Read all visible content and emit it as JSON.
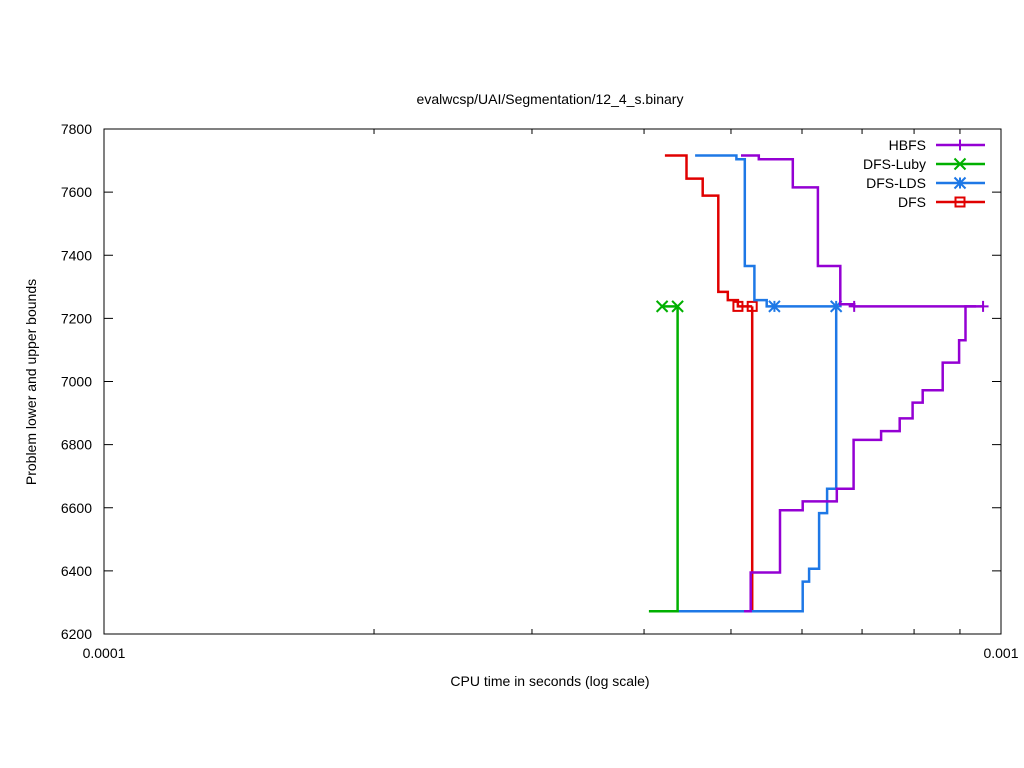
{
  "chart_data": {
    "type": "line",
    "title": "evalwcsp/UAI/Segmentation/12_4_s.binary",
    "xlabel": "CPU time in seconds (log scale)",
    "ylabel": "Problem lower and upper bounds",
    "xscale": "log",
    "xlim": [
      0.0001,
      0.001
    ],
    "ylim": [
      6200,
      7800
    ],
    "x_ticks": [
      {
        "value": 0.0001,
        "label": "0.0001"
      },
      {
        "value": 0.001,
        "label": "0.001"
      }
    ],
    "x_minor_ticks": [
      0.0002,
      0.0003,
      0.0004,
      0.0005,
      0.0006,
      0.0007,
      0.0008,
      0.0009
    ],
    "y_ticks": [
      6200,
      6400,
      6600,
      6800,
      7000,
      7200,
      7400,
      7600,
      7800
    ],
    "grid": false,
    "legend_position": "top-right",
    "series": [
      {
        "name": "HBFS",
        "color": "#9400d3",
        "marker": "plus",
        "upper": {
          "x": [
            0.000513,
            0.000537,
            0.000586,
            0.000625,
            0.000662,
            0.000686,
            0.000715
          ],
          "y": [
            7716,
            7704,
            7615,
            7366,
            7245,
            7238,
            7238
          ],
          "end_x": 0.000955
        },
        "lower": {
          "x": [
            0.000526,
            0.000567,
            0.000601,
            0.000656,
            0.000685,
            0.000735,
            0.000771,
            0.000797,
            0.000818,
            0.000861,
            0.000898,
            0.000913,
            0.000938
          ],
          "y": [
            6395,
            6592,
            6620,
            6660,
            6815,
            6843,
            6883,
            6933,
            6972,
            7060,
            7131,
            7238,
            7238
          ],
          "start_x": 0.000517,
          "start_y": 6272
        },
        "markers": [
          {
            "x": 0.000686,
            "y": 7238
          },
          {
            "x": 0.000955,
            "y": 7238
          }
        ]
      },
      {
        "name": "DFS-Luby",
        "color": "#00b000",
        "marker": "cross",
        "upper": {
          "x": [
            0.000419,
            0.000436
          ],
          "y": [
            7238,
            7238
          ]
        },
        "lower": {
          "x": [
            0.000405,
            0.000436,
            0.000436
          ],
          "y": [
            6272,
            6272,
            7238
          ]
        },
        "markers": [
          {
            "x": 0.000419,
            "y": 7238
          },
          {
            "x": 0.000436,
            "y": 7238
          }
        ]
      },
      {
        "name": "DFS-LDS",
        "color": "#1e78e6",
        "marker": "star",
        "upper": {
          "x": [
            0.000456,
            0.000507,
            0.000518,
            0.000531,
            0.000548,
            0.000559,
            0.000655
          ],
          "y": [
            7716,
            7704,
            7366,
            7258,
            7238,
            7238,
            7238
          ]
        },
        "lower": {
          "x": [
            0.000436,
            0.000601,
            0.000611,
            0.000627,
            0.00064,
            0.000655,
            0.000655
          ],
          "y": [
            6272,
            6366,
            6407,
            6583,
            6660,
            6660,
            7238
          ]
        },
        "markers": [
          {
            "x": 0.000559,
            "y": 7238
          },
          {
            "x": 0.000655,
            "y": 7238
          }
        ]
      },
      {
        "name": "DFS",
        "color": "#e00000",
        "marker": "square",
        "upper": {
          "x": [
            0.000422,
            0.000446,
            0.000465,
            0.000484,
            0.000496,
            0.000509,
            0.000528
          ],
          "y": [
            7716,
            7643,
            7589,
            7284,
            7258,
            7238,
            7238
          ]
        },
        "lower": {
          "x": [
            0.000425,
            0.000528,
            0.000528
          ],
          "y": [
            6272,
            6272,
            7238
          ]
        },
        "markers": [
          {
            "x": 0.000509,
            "y": 7238
          },
          {
            "x": 0.000528,
            "y": 7238
          }
        ]
      }
    ]
  }
}
